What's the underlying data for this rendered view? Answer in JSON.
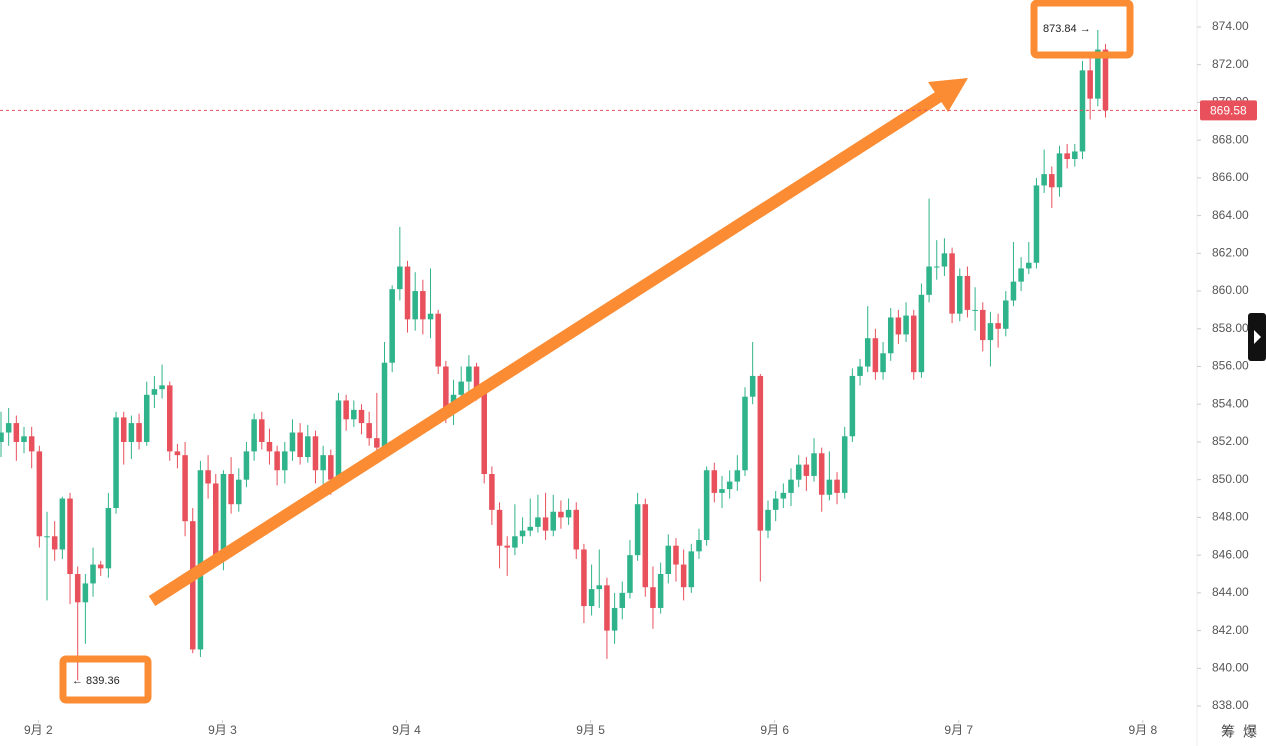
{
  "chart_data": {
    "type": "candlestick",
    "ylim": [
      837.26,
      875.43
    ],
    "yticks": [
      {
        "value": 838,
        "label": "838.00"
      },
      {
        "value": 840,
        "label": "840.00"
      },
      {
        "value": 842,
        "label": "842.00"
      },
      {
        "value": 844,
        "label": "844.00"
      },
      {
        "value": 846,
        "label": "846.00"
      },
      {
        "value": 848,
        "label": "848.00"
      },
      {
        "value": 850,
        "label": "850.00"
      },
      {
        "value": 852,
        "label": "852.00"
      },
      {
        "value": 854,
        "label": "854.00"
      },
      {
        "value": 856,
        "label": "856.00"
      },
      {
        "value": 858,
        "label": "858.00"
      },
      {
        "value": 860,
        "label": "860.00"
      },
      {
        "value": 862,
        "label": "862.00"
      },
      {
        "value": 864,
        "label": "864.00"
      },
      {
        "value": 866,
        "label": "866.00"
      },
      {
        "value": 868,
        "label": "868.00"
      },
      {
        "value": 870,
        "label": "870.00"
      },
      {
        "value": 872,
        "label": "872.00"
      },
      {
        "value": 874,
        "label": "874.00"
      }
    ],
    "xlim": [
      0,
      155.8
    ],
    "xticks": [
      {
        "value": 5,
        "label": "9月 2"
      },
      {
        "value": 29,
        "label": "9月 3"
      },
      {
        "value": 53,
        "label": "9月 4"
      },
      {
        "value": 77,
        "label": "9月 5"
      },
      {
        "value": 101,
        "label": "9月 6"
      },
      {
        "value": 125,
        "label": "9月 7"
      },
      {
        "value": 149,
        "label": "9月 8"
      }
    ],
    "up_color": "#2fb38a",
    "down_color": "#e8505b",
    "high_label": "873.84 →",
    "low_label": "← 839.36",
    "last_price": 869.58,
    "side_buttons": [
      "筹",
      "爆"
    ],
    "candles": [
      [
        852.0,
        853.6,
        851.2,
        852.5
      ],
      [
        852.5,
        853.8,
        851.8,
        853.0
      ],
      [
        853.0,
        853.4,
        851.0,
        852.0
      ],
      [
        852.0,
        852.8,
        851.4,
        852.3
      ],
      [
        852.3,
        852.8,
        850.6,
        851.5
      ],
      [
        851.5,
        851.8,
        846.4,
        847.0
      ],
      [
        847.0,
        848.3,
        843.6,
        847.0
      ],
      [
        847.0,
        847.8,
        845.7,
        846.3
      ],
      [
        846.3,
        849.1,
        845.8,
        849.0
      ],
      [
        849.0,
        849.3,
        843.4,
        845.0
      ],
      [
        845.0,
        845.4,
        839.36,
        843.5
      ],
      [
        843.5,
        845.0,
        841.3,
        844.5
      ],
      [
        844.5,
        846.4,
        843.8,
        845.5
      ],
      [
        845.5,
        845.7,
        844.9,
        845.3
      ],
      [
        845.3,
        849.3,
        844.8,
        848.5
      ],
      [
        848.5,
        853.6,
        848.2,
        853.3
      ],
      [
        853.3,
        853.6,
        850.8,
        852.0
      ],
      [
        852.0,
        853.4,
        851.1,
        853.0
      ],
      [
        853.0,
        853.5,
        851.6,
        852.0
      ],
      [
        852.0,
        855.2,
        851.8,
        854.5
      ],
      [
        854.5,
        855.5,
        853.8,
        854.8
      ],
      [
        854.8,
        856.1,
        854.3,
        855.0
      ],
      [
        855.0,
        855.2,
        851.0,
        851.5
      ],
      [
        851.5,
        851.9,
        850.6,
        851.3
      ],
      [
        851.3,
        852.0,
        847.0,
        847.8
      ],
      [
        847.8,
        848.5,
        840.8,
        841.0
      ],
      [
        841.0,
        851.0,
        840.6,
        850.5
      ],
      [
        850.5,
        851.3,
        849.0,
        849.8
      ],
      [
        849.8,
        850.3,
        845.6,
        846.0
      ],
      [
        846.0,
        850.5,
        845.2,
        850.3
      ],
      [
        850.3,
        851.2,
        848.2,
        848.7
      ],
      [
        848.7,
        850.6,
        848.3,
        850.0
      ],
      [
        850.0,
        852.0,
        849.6,
        851.5
      ],
      [
        851.5,
        853.5,
        851.0,
        853.2
      ],
      [
        853.2,
        853.6,
        851.6,
        852.0
      ],
      [
        852.0,
        852.7,
        850.8,
        851.5
      ],
      [
        851.5,
        851.8,
        849.7,
        850.5
      ],
      [
        850.5,
        852.0,
        849.8,
        851.5
      ],
      [
        851.5,
        853.2,
        851.0,
        852.5
      ],
      [
        852.5,
        853.0,
        850.8,
        851.2
      ],
      [
        851.2,
        852.9,
        850.9,
        852.3
      ],
      [
        852.3,
        852.6,
        849.8,
        850.5
      ],
      [
        850.5,
        851.8,
        849.5,
        851.3
      ],
      [
        851.3,
        851.6,
        849.2,
        850.0
      ],
      [
        850.0,
        854.6,
        849.8,
        854.2
      ],
      [
        854.2,
        854.5,
        852.6,
        853.2
      ],
      [
        853.2,
        854.2,
        852.8,
        853.7
      ],
      [
        853.7,
        854.0,
        852.4,
        853.0
      ],
      [
        853.0,
        853.6,
        851.8,
        852.2
      ],
      [
        852.2,
        854.6,
        851.3,
        851.7
      ],
      [
        851.7,
        857.3,
        851.5,
        856.2
      ],
      [
        856.2,
        860.3,
        855.7,
        860.1
      ],
      [
        860.1,
        863.4,
        859.5,
        861.3
      ],
      [
        861.3,
        861.6,
        857.8,
        858.5
      ],
      [
        858.5,
        861.0,
        857.9,
        860.0
      ],
      [
        860.0,
        860.6,
        857.7,
        858.5
      ],
      [
        858.5,
        861.2,
        857.5,
        858.8
      ],
      [
        858.8,
        859.0,
        855.6,
        856.0
      ],
      [
        856.0,
        856.3,
        853.0,
        853.8
      ],
      [
        853.8,
        855.3,
        852.9,
        854.5
      ],
      [
        854.5,
        856.0,
        854.0,
        855.2
      ],
      [
        855.2,
        856.6,
        854.7,
        856.0
      ],
      [
        856.0,
        856.2,
        854.2,
        854.8
      ],
      [
        854.8,
        855.1,
        849.8,
        850.3
      ],
      [
        850.3,
        850.7,
        847.6,
        848.4
      ],
      [
        848.4,
        848.8,
        845.3,
        846.5
      ],
      [
        846.5,
        847.0,
        844.9,
        846.4
      ],
      [
        846.4,
        848.7,
        846.0,
        847.0
      ],
      [
        847.0,
        848.0,
        846.6,
        847.3
      ],
      [
        847.3,
        849.0,
        847.0,
        847.5
      ],
      [
        847.5,
        849.2,
        847.2,
        848.0
      ],
      [
        848.0,
        849.3,
        846.8,
        847.3
      ],
      [
        847.3,
        849.2,
        847.0,
        848.3
      ],
      [
        848.3,
        848.9,
        847.4,
        848.0
      ],
      [
        848.0,
        849.0,
        847.6,
        848.4
      ],
      [
        848.4,
        848.8,
        845.8,
        846.3
      ],
      [
        846.3,
        846.6,
        842.4,
        843.3
      ],
      [
        843.3,
        845.5,
        842.8,
        844.2
      ],
      [
        844.2,
        846.3,
        843.2,
        844.4
      ],
      [
        844.4,
        844.8,
        840.5,
        842.0
      ],
      [
        842.0,
        844.0,
        841.3,
        843.2
      ],
      [
        843.2,
        844.6,
        842.6,
        844.0
      ],
      [
        844.0,
        846.8,
        843.7,
        846.0
      ],
      [
        846.0,
        849.3,
        845.7,
        848.7
      ],
      [
        848.7,
        849.0,
        843.8,
        844.3
      ],
      [
        844.3,
        845.4,
        842.1,
        843.2
      ],
      [
        843.2,
        845.6,
        842.9,
        845.0
      ],
      [
        845.0,
        847.1,
        844.5,
        846.5
      ],
      [
        846.5,
        846.9,
        844.6,
        845.5
      ],
      [
        845.5,
        846.3,
        843.6,
        844.3
      ],
      [
        844.3,
        846.6,
        844.0,
        846.2
      ],
      [
        846.2,
        847.4,
        845.8,
        846.8
      ],
      [
        846.8,
        850.7,
        846.5,
        850.5
      ],
      [
        850.5,
        850.9,
        848.8,
        849.3
      ],
      [
        849.3,
        850.2,
        848.5,
        849.5
      ],
      [
        849.5,
        850.5,
        849.0,
        849.9
      ],
      [
        849.9,
        851.3,
        849.4,
        850.5
      ],
      [
        850.5,
        854.9,
        850.2,
        854.4
      ],
      [
        854.4,
        857.3,
        854.0,
        855.5
      ],
      [
        855.5,
        855.6,
        844.6,
        847.3
      ],
      [
        847.3,
        848.9,
        846.9,
        848.4
      ],
      [
        848.4,
        849.4,
        847.8,
        849.0
      ],
      [
        849.0,
        849.8,
        848.5,
        849.3
      ],
      [
        849.3,
        850.6,
        848.6,
        850.0
      ],
      [
        850.0,
        851.3,
        849.6,
        850.8
      ],
      [
        850.8,
        851.2,
        849.4,
        850.2
      ],
      [
        850.2,
        852.2,
        849.9,
        851.4
      ],
      [
        851.4,
        851.7,
        848.3,
        849.2
      ],
      [
        849.2,
        851.5,
        848.9,
        850.0
      ],
      [
        850.0,
        850.4,
        848.7,
        849.3
      ],
      [
        849.3,
        852.8,
        849.0,
        852.3
      ],
      [
        852.3,
        855.9,
        852.0,
        855.5
      ],
      [
        855.5,
        856.4,
        855.0,
        856.0
      ],
      [
        856.0,
        859.2,
        855.7,
        857.5
      ],
      [
        857.5,
        858.0,
        855.3,
        855.7
      ],
      [
        855.7,
        857.3,
        855.3,
        856.7
      ],
      [
        856.7,
        859.1,
        856.3,
        858.6
      ],
      [
        858.6,
        859.0,
        857.2,
        857.7
      ],
      [
        857.7,
        859.4,
        857.3,
        858.7
      ],
      [
        858.7,
        859.0,
        855.3,
        855.7
      ],
      [
        855.7,
        860.4,
        855.4,
        859.8
      ],
      [
        859.8,
        864.9,
        859.4,
        861.3
      ],
      [
        861.3,
        862.7,
        860.6,
        861.3
      ],
      [
        861.3,
        862.8,
        860.8,
        862.0
      ],
      [
        862.0,
        862.3,
        858.3,
        858.8
      ],
      [
        858.8,
        861.2,
        858.4,
        860.8
      ],
      [
        860.8,
        861.3,
        858.6,
        859.0
      ],
      [
        859.0,
        860.2,
        857.9,
        859.0
      ],
      [
        859.0,
        859.4,
        856.8,
        857.4
      ],
      [
        857.4,
        858.9,
        856.0,
        858.3
      ],
      [
        858.3,
        858.8,
        857.0,
        858.0
      ],
      [
        858.0,
        860.0,
        857.6,
        859.5
      ],
      [
        859.5,
        862.6,
        859.2,
        860.5
      ],
      [
        860.5,
        861.8,
        860.0,
        861.2
      ],
      [
        861.2,
        862.6,
        860.9,
        861.5
      ],
      [
        861.5,
        866.0,
        861.2,
        865.6
      ],
      [
        865.6,
        867.5,
        865.2,
        866.2
      ],
      [
        866.2,
        866.6,
        864.4,
        865.5
      ],
      [
        865.5,
        867.7,
        865.0,
        867.3
      ],
      [
        867.3,
        867.8,
        866.5,
        867.0
      ],
      [
        867.0,
        867.8,
        866.6,
        867.4
      ],
      [
        867.4,
        872.2,
        867.0,
        871.7
      ],
      [
        871.7,
        872.6,
        869.1,
        870.2
      ],
      [
        870.2,
        873.84,
        869.8,
        872.8
      ],
      [
        872.8,
        873.1,
        869.2,
        869.58
      ]
    ]
  }
}
